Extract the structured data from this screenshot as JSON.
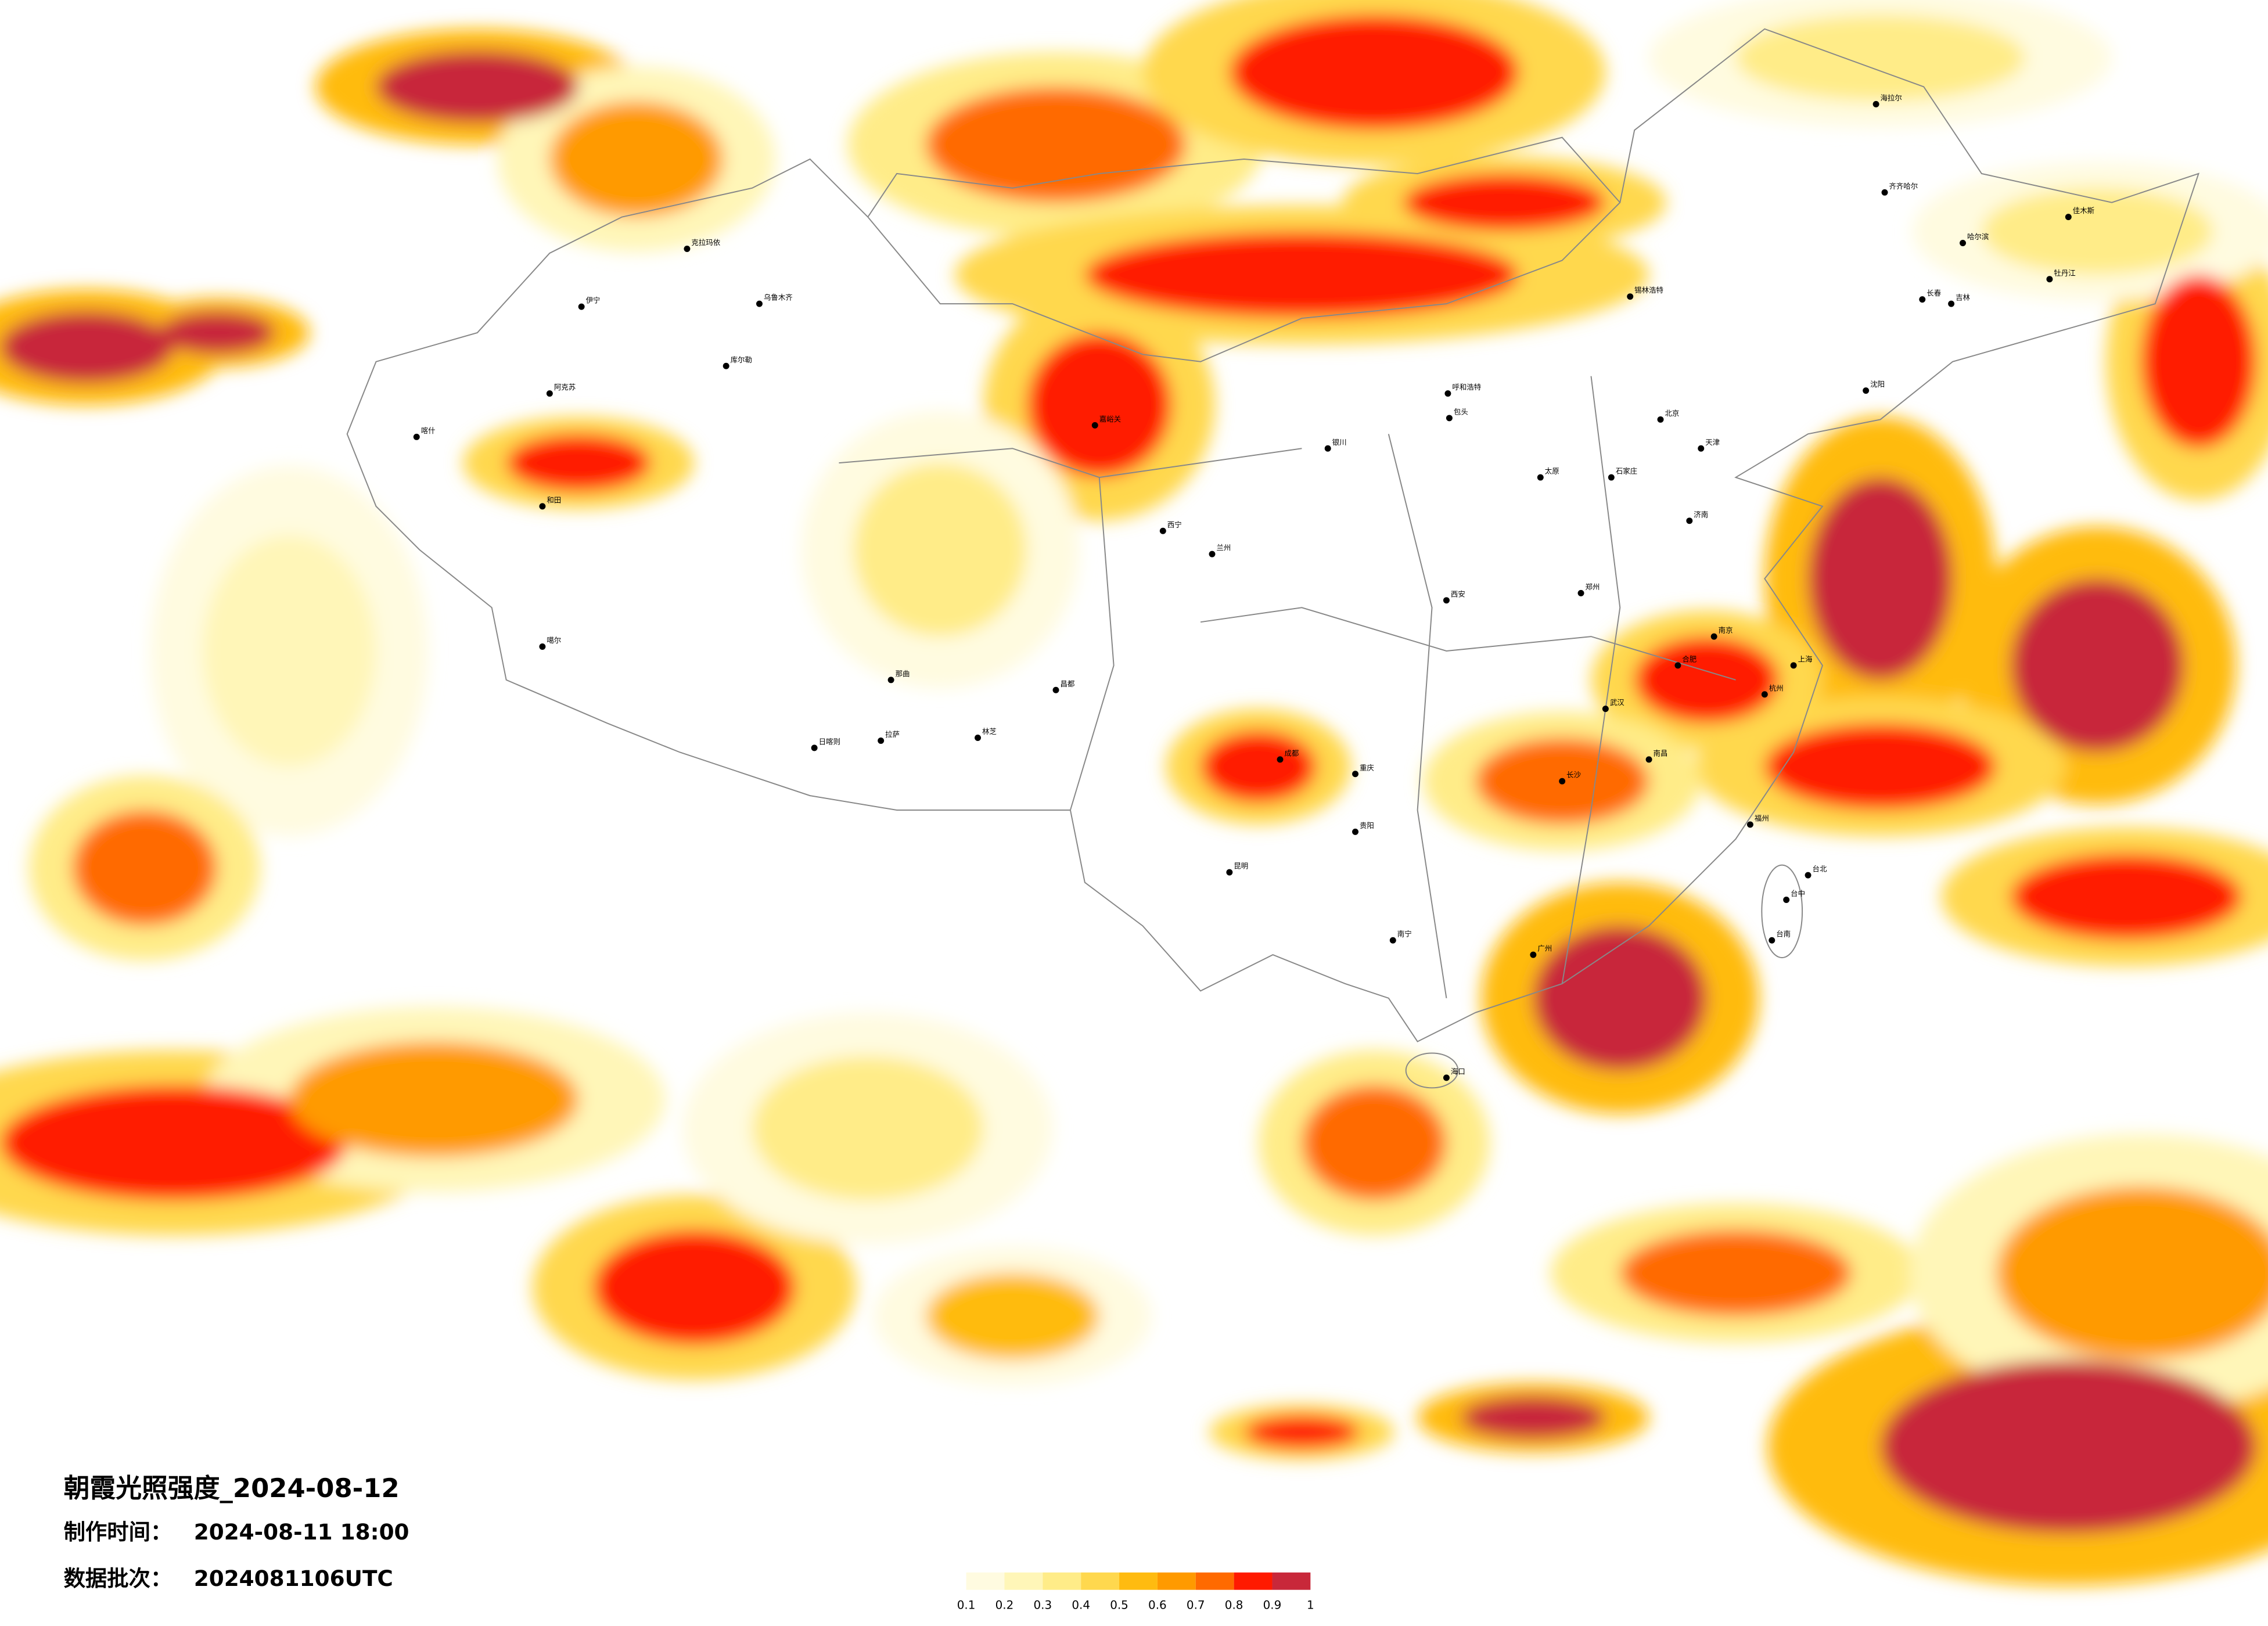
{
  "header": {
    "title": "朝霞光照强度_2024-08-12",
    "made_label": "制作时间：",
    "made_value": "2024-08-11 18:00",
    "batch_label": "数据批次：",
    "batch_value": "2024081106UTC"
  },
  "legend": {
    "ticks": [
      0.1,
      0.2,
      0.3,
      0.4,
      0.5,
      0.6,
      0.7,
      0.8,
      0.9,
      1
    ],
    "colors": [
      "#fffbe0",
      "#fff6b8",
      "#ffec88",
      "#ffd84e",
      "#ffbb10",
      "#ff9a00",
      "#ff6a00",
      "#ff1a00",
      "#c8283a"
    ]
  },
  "map": {
    "cities": [
      "克拉玛依",
      "乌鲁木齐",
      "伊宁",
      "阿克苏",
      "喀什",
      "和田",
      "库尔勒",
      "噶尔",
      "日喀则",
      "拉萨",
      "林芝",
      "那曲",
      "昌都",
      "嘉峪关",
      "西宁",
      "兰州",
      "银川",
      "呼和浩特",
      "包头",
      "锡林浩特",
      "海拉尔",
      "齐齐哈尔",
      "哈尔滨",
      "佳木斯",
      "牡丹江",
      "长春",
      "吉林",
      "沈阳",
      "北京",
      "天津",
      "石家庄",
      "太原",
      "济南",
      "郑州",
      "西安",
      "成都",
      "重庆",
      "贵阳",
      "昆明",
      "南宁",
      "广州",
      "长沙",
      "武汉",
      "南昌",
      "合肥",
      "南京",
      "上海",
      "杭州",
      "福州",
      "台北",
      "台中",
      "台南",
      "海口"
    ]
  }
}
